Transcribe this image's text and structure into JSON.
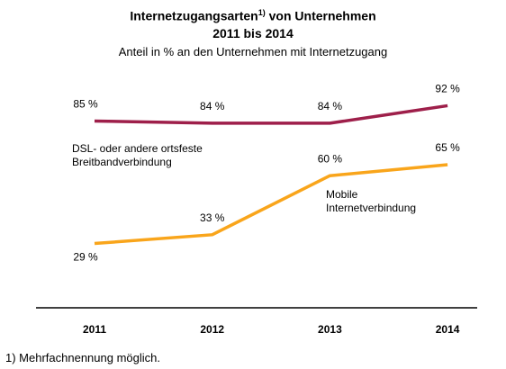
{
  "chart_data": {
    "type": "line",
    "title": {
      "main": "Internetzugangsarten",
      "note": "1)",
      "rest": "von Unternehmen",
      "years": "2011 bis 2014"
    },
    "subtitle": "Anteil in % an den Unternehmen mit Internetzugang",
    "categories": [
      "2011",
      "2012",
      "2013",
      "2014"
    ],
    "series": [
      {
        "name": "DSL- oder andere ortsfeste Breitbandverbindung",
        "color": "#9e1f4a",
        "values": [
          85,
          84,
          84,
          92
        ],
        "value_labels": [
          "85 %",
          "84 %",
          "84 %",
          "92 %"
        ]
      },
      {
        "name": "Mobile Internetverbindung",
        "color": "#f9a51b",
        "values": [
          29,
          33,
          60,
          65
        ],
        "value_labels": [
          "29 %",
          "33 %",
          "60 %",
          "65 %"
        ]
      }
    ],
    "footnote": "1) Mehrfachnennung möglich."
  }
}
